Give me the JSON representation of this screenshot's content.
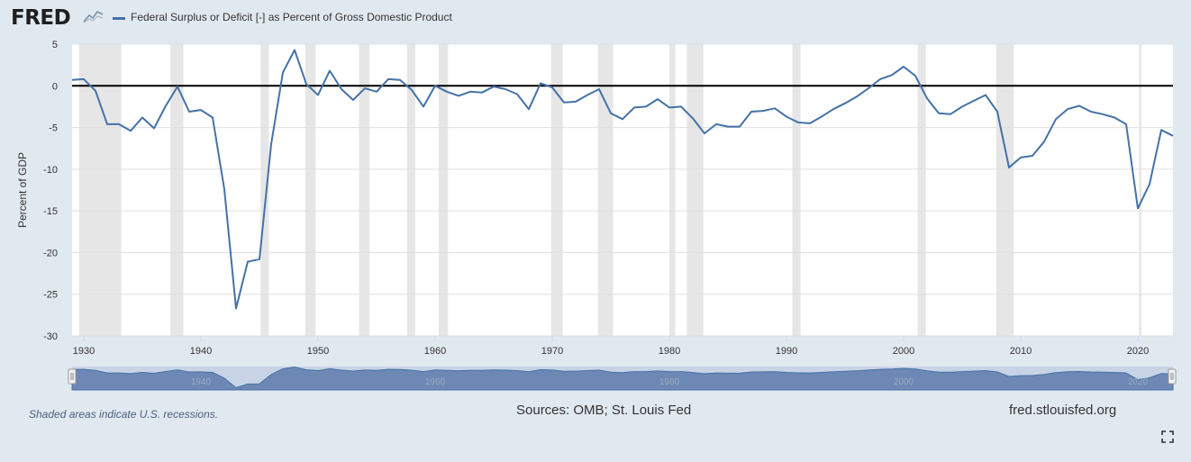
{
  "header": {
    "logo_text": "FRED",
    "legend_label": "Federal Surplus or Deficit [-] as Percent of Gross Domestic Product",
    "series_color": "#4572a7"
  },
  "footer": {
    "note": "Shaded areas indicate U.S. recessions.",
    "sources": "Sources: OMB; St. Louis Fed",
    "url": "fred.stlouisfed.org",
    "fullscreen_icon": "fullscreen-icon"
  },
  "chart_data": {
    "type": "line",
    "title": "Federal Surplus or Deficit [-] as Percent of Gross Domestic Product",
    "xlabel": "",
    "ylabel": "Percent of GDP",
    "xlim": [
      1929,
      2023
    ],
    "ylim": [
      -30,
      5
    ],
    "y_ticks": [
      5,
      0,
      -5,
      -10,
      -15,
      -20,
      -25,
      -30
    ],
    "x_ticks": [
      1930,
      1940,
      1950,
      1960,
      1970,
      1980,
      1990,
      2000,
      2010,
      2020
    ],
    "navigator_ticks": [
      1940,
      1960,
      1980,
      2000,
      2020
    ],
    "grid": true,
    "zero_line": true,
    "series": [
      {
        "name": "Federal Surplus or Deficit [-] as Percent of Gross Domestic Product",
        "color": "#4572a7",
        "x": [
          1929,
          1930,
          1931,
          1932,
          1933,
          1934,
          1935,
          1936,
          1937,
          1938,
          1939,
          1940,
          1941,
          1942,
          1943,
          1944,
          1945,
          1946,
          1947,
          1948,
          1949,
          1950,
          1951,
          1952,
          1953,
          1954,
          1955,
          1956,
          1957,
          1958,
          1959,
          1960,
          1961,
          1962,
          1963,
          1964,
          1965,
          1966,
          1967,
          1968,
          1969,
          1970,
          1971,
          1972,
          1973,
          1974,
          1975,
          1976,
          1977,
          1978,
          1979,
          1980,
          1981,
          1982,
          1983,
          1984,
          1985,
          1986,
          1987,
          1988,
          1989,
          1990,
          1991,
          1992,
          1993,
          1994,
          1995,
          1996,
          1997,
          1998,
          1999,
          2000,
          2001,
          2002,
          2003,
          2004,
          2005,
          2006,
          2007,
          2008,
          2009,
          2010,
          2011,
          2012,
          2013,
          2014,
          2015,
          2016,
          2017,
          2018,
          2019,
          2020,
          2021,
          2022,
          2023
        ],
        "values": [
          0.7,
          0.8,
          -0.6,
          -4.6,
          -4.6,
          -5.4,
          -3.8,
          -5.1,
          -2.4,
          -0.1,
          -3.1,
          -2.9,
          -3.8,
          -12.4,
          -26.7,
          -21.1,
          -20.8,
          -7.0,
          1.6,
          4.3,
          0.2,
          -1.1,
          1.8,
          -0.4,
          -1.7,
          -0.3,
          -0.7,
          0.8,
          0.7,
          -0.5,
          -2.5,
          0.0,
          -0.7,
          -1.2,
          -0.7,
          -0.8,
          -0.1,
          -0.4,
          -1.0,
          -2.8,
          0.3,
          -0.2,
          -2.0,
          -1.9,
          -1.1,
          -0.4,
          -3.3,
          -4.0,
          -2.6,
          -2.5,
          -1.6,
          -2.6,
          -2.5,
          -3.9,
          -5.7,
          -4.6,
          -4.9,
          -4.9,
          -3.1,
          -3.0,
          -2.7,
          -3.7,
          -4.4,
          -4.5,
          -3.7,
          -2.8,
          -2.1,
          -1.3,
          -0.3,
          0.8,
          1.3,
          2.3,
          1.2,
          -1.5,
          -3.3,
          -3.4,
          -2.5,
          -1.8,
          -1.1,
          -3.1,
          -9.8,
          -8.6,
          -8.4,
          -6.7,
          -4.0,
          -2.8,
          -2.4,
          -3.1,
          -3.4,
          -3.8,
          -4.6,
          -14.7,
          -11.8,
          -5.3,
          -6.0
        ]
      }
    ],
    "recessions": [
      [
        1929.6,
        1933.2
      ],
      [
        1937.4,
        1938.5
      ],
      [
        1945.1,
        1945.8
      ],
      [
        1948.9,
        1949.8
      ],
      [
        1953.5,
        1954.4
      ],
      [
        1957.6,
        1958.3
      ],
      [
        1960.3,
        1961.1
      ],
      [
        1969.9,
        1970.9
      ],
      [
        1973.9,
        1975.2
      ],
      [
        1980.0,
        1980.5
      ],
      [
        1981.5,
        1982.9
      ],
      [
        1990.5,
        1991.2
      ],
      [
        2001.2,
        2001.9
      ],
      [
        2007.9,
        2009.4
      ],
      [
        2020.1,
        2020.3
      ]
    ]
  }
}
